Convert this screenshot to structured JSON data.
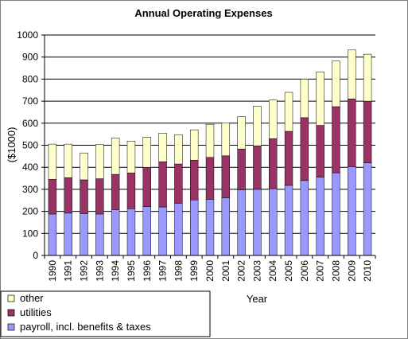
{
  "chart_data": {
    "type": "bar",
    "stacked": true,
    "title": "Annual Operating Expenses",
    "xlabel": "Year",
    "ylabel": "($1000)",
    "ylim": [
      0,
      1000
    ],
    "yticks": [
      0,
      100,
      200,
      300,
      400,
      500,
      600,
      700,
      800,
      900,
      1000
    ],
    "grid": "horizontal",
    "legend_position": "bottom-left",
    "categories": [
      "1990",
      "1991",
      "1992",
      "1993",
      "1994",
      "1995",
      "1996",
      "1997",
      "1998",
      "1999",
      "2000",
      "2001",
      "2002",
      "2003",
      "2004",
      "2005",
      "2006",
      "2007",
      "2008",
      "2009",
      "2010"
    ],
    "series": [
      {
        "name": "payroll, incl. benefits & taxes",
        "color": "#9999ff",
        "values": [
          188,
          192,
          190,
          188,
          208,
          212,
          222,
          220,
          237,
          252,
          255,
          262,
          298,
          300,
          303,
          318,
          340,
          355,
          375,
          403,
          420
        ]
      },
      {
        "name": "utilities",
        "color": "#993366",
        "values": [
          157,
          161,
          153,
          160,
          160,
          162,
          178,
          205,
          178,
          180,
          190,
          190,
          185,
          197,
          227,
          245,
          285,
          235,
          300,
          307,
          280
        ]
      },
      {
        "name": "other",
        "color": "#ffffcc",
        "values": [
          160,
          152,
          122,
          155,
          165,
          145,
          137,
          130,
          133,
          138,
          150,
          150,
          147,
          180,
          175,
          177,
          175,
          243,
          207,
          222,
          213
        ]
      }
    ]
  }
}
